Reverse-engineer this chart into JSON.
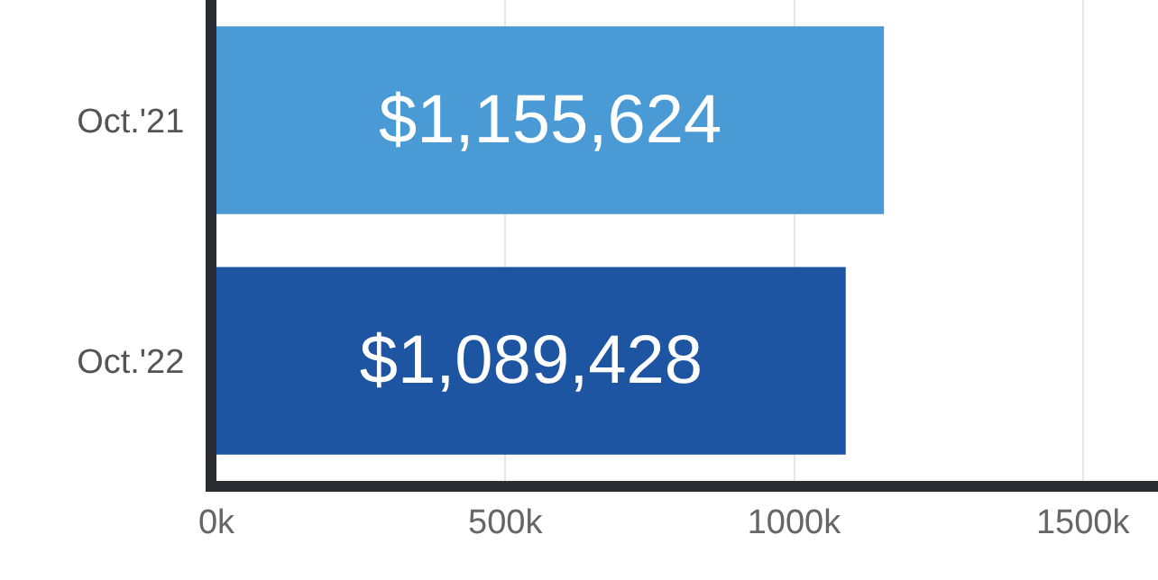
{
  "chart_data": {
    "type": "bar",
    "orientation": "horizontal",
    "categories": [
      "Oct.'21",
      "Oct.'22"
    ],
    "values": [
      1155624,
      1089428
    ],
    "colors": [
      "#4a9ad6",
      "#1d55a3"
    ],
    "value_labels": [
      "$1,155,624",
      "$1,089,428"
    ],
    "xlim": [
      0,
      1630000
    ],
    "xticks": [
      {
        "value": 0,
        "label": "0k"
      },
      {
        "value": 500000,
        "label": "500k"
      },
      {
        "value": 1000000,
        "label": "1000k"
      },
      {
        "value": 1500000,
        "label": "1500k"
      }
    ],
    "grid": "x",
    "legend": false
  }
}
